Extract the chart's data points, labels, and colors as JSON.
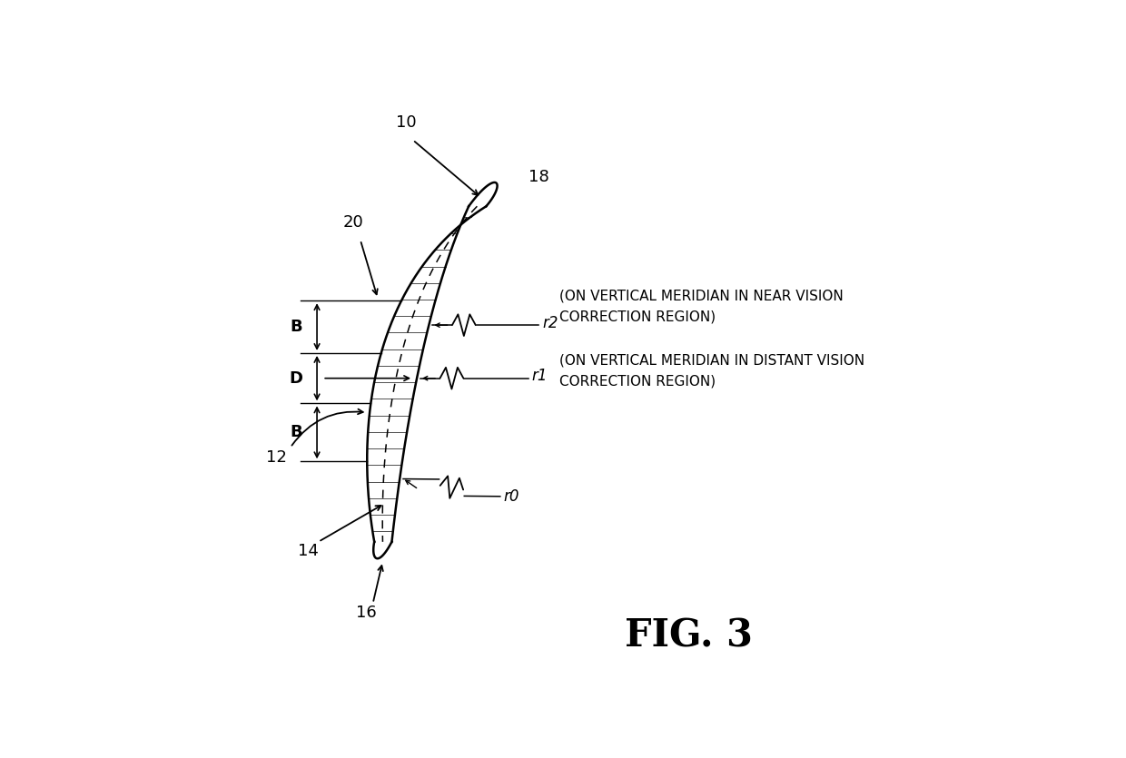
{
  "bg_color": "#ffffff",
  "line_color": "#000000",
  "fig_label": "FIG. 3",
  "label_10": "10",
  "label_12": "12",
  "label_14": "14",
  "label_16": "16",
  "label_18": "18",
  "label_20": "20",
  "label_B": "B",
  "label_D": "D",
  "label_r0": "r0",
  "label_r1": "r1",
  "label_r2": "r2",
  "text_r2_line1": "(ON VERTICAL MERIDIAN IN NEAR VISION",
  "text_r2_line2": "CORRECTION REGION)",
  "text_r1_line1": "(ON VERTICAL MERIDIAN IN DISTANT VISION",
  "text_r1_line2": "CORRECTION REGION)",
  "font_size_labels": 13,
  "font_size_fig": 30,
  "font_size_annotations": 11
}
